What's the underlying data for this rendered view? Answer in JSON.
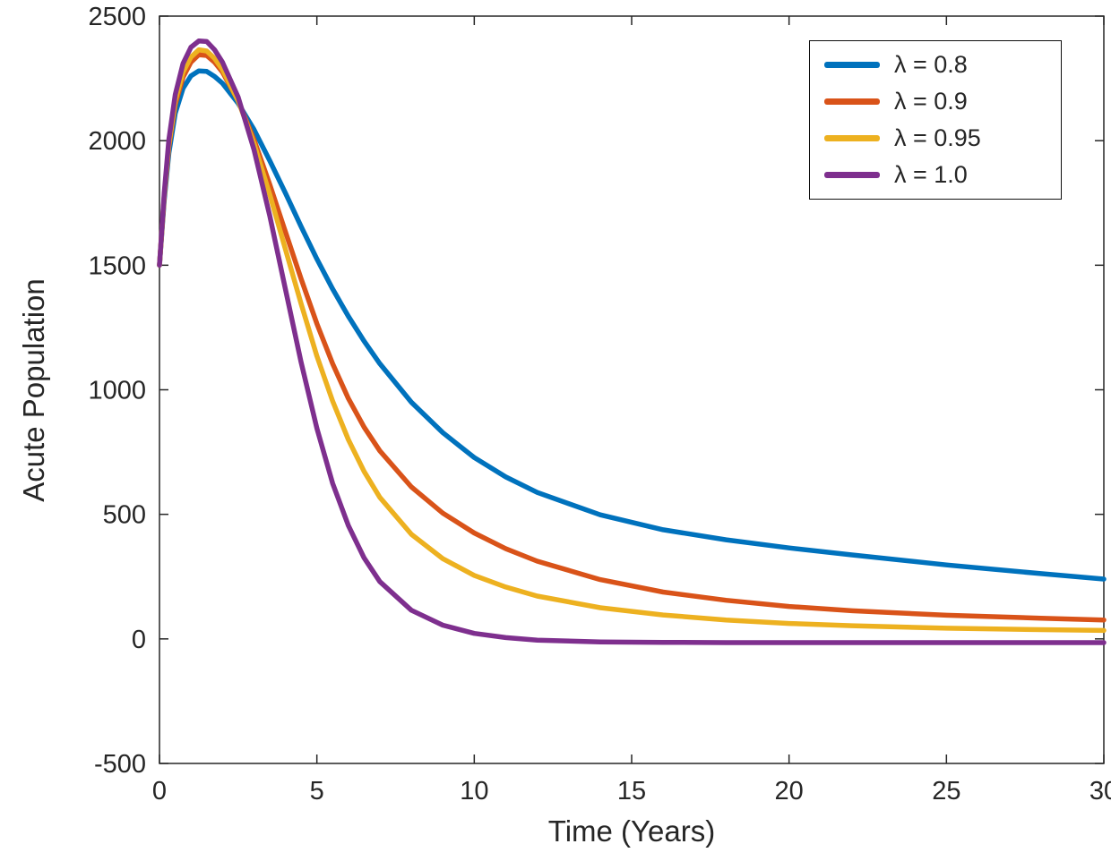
{
  "chart_data": {
    "type": "line",
    "title": "",
    "xlabel": "Time (Years)",
    "ylabel": "Acute Population",
    "xlim": [
      0,
      30
    ],
    "ylim": [
      -500,
      2500
    ],
    "xticks": [
      0,
      5,
      10,
      15,
      20,
      25,
      30
    ],
    "yticks": [
      -500,
      0,
      500,
      1000,
      1500,
      2000,
      2500
    ],
    "grid": false,
    "legend_position": "top-right",
    "axis_color": "#262626",
    "x": [
      0,
      0.15,
      0.3,
      0.5,
      0.75,
      1,
      1.25,
      1.5,
      1.75,
      2,
      2.5,
      3,
      3.5,
      4,
      4.5,
      5,
      5.5,
      6,
      6.5,
      7,
      8,
      9,
      10,
      11,
      12,
      14,
      16,
      18,
      20,
      22,
      25,
      28,
      30
    ],
    "series": [
      {
        "name": "λ = 0.8",
        "color": "#0072BD",
        "values": [
          1500,
          1760,
          1950,
          2110,
          2210,
          2260,
          2280,
          2278,
          2258,
          2230,
          2150,
          2045,
          1920,
          1790,
          1655,
          1525,
          1405,
          1295,
          1195,
          1105,
          950,
          828,
          728,
          650,
          588,
          498,
          438,
          398,
          365,
          337,
          297,
          262,
          240
        ]
      },
      {
        "name": "λ = 0.9",
        "color": "#D95319",
        "values": [
          1500,
          1775,
          1975,
          2145,
          2255,
          2315,
          2345,
          2342,
          2315,
          2275,
          2160,
          2005,
          1825,
          1635,
          1445,
          1265,
          1105,
          965,
          850,
          755,
          610,
          505,
          425,
          362,
          312,
          238,
          188,
          155,
          130,
          113,
          95,
          83,
          76
        ]
      },
      {
        "name": "λ = 0.95",
        "color": "#EDB120",
        "values": [
          1500,
          1780,
          1985,
          2160,
          2275,
          2335,
          2365,
          2360,
          2330,
          2285,
          2160,
          1990,
          1785,
          1565,
          1345,
          1135,
          955,
          800,
          672,
          568,
          420,
          322,
          255,
          208,
          172,
          125,
          96,
          76,
          62,
          53,
          43,
          37,
          34
        ]
      },
      {
        "name": "λ = 1.0",
        "color": "#7E2F8E",
        "values": [
          1500,
          1790,
          2005,
          2185,
          2310,
          2375,
          2400,
          2398,
          2365,
          2315,
          2175,
          1965,
          1700,
          1405,
          1110,
          845,
          625,
          455,
          325,
          230,
          115,
          55,
          22,
          5,
          -5,
          -12,
          -14,
          -15,
          -15,
          -15,
          -15,
          -15,
          -15
        ]
      }
    ]
  }
}
